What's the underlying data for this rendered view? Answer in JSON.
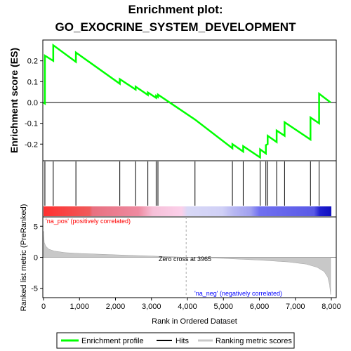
{
  "title_line1": "Enrichment plot:",
  "title_line2": "GO_EXOCRINE_SYSTEM_DEVELOPMENT",
  "colors": {
    "es_line": "#00ff00",
    "hits": "#000000",
    "ranking": "#c8c8c8",
    "pos_text": "#ff0000",
    "neg_text": "#0000ff",
    "zero_cross": "#aaaaaa"
  },
  "chart_data": [
    {
      "type": "line",
      "name": "enrichment_profile",
      "ylabel": "Enrichment score (ES)",
      "xlim": [
        0,
        8100
      ],
      "ylim": [
        -0.28,
        0.3
      ],
      "yticks": [
        -0.2,
        -0.1,
        0.0,
        0.1,
        0.2
      ],
      "ytick_labels": [
        "-0.2",
        "-0.1",
        "0.0",
        "0.1",
        "0.2"
      ],
      "grid": false,
      "x": [
        0,
        38,
        38,
        270,
        270,
        900,
        900,
        2120,
        2120,
        2560,
        2560,
        2900,
        2900,
        3130,
        3130,
        3180,
        3180,
        4210,
        4210,
        5250,
        5250,
        5550,
        5550,
        6020,
        6020,
        6180,
        6180,
        6230,
        6230,
        6480,
        6480,
        6700,
        6700,
        7420,
        7420,
        7660,
        7660,
        7980
      ],
      "y": [
        0.0,
        -0.005,
        0.225,
        0.2,
        0.275,
        0.195,
        0.24,
        0.09,
        0.112,
        0.062,
        0.076,
        0.036,
        0.048,
        0.022,
        0.032,
        0.026,
        0.038,
        -0.082,
        -0.082,
        -0.22,
        -0.2,
        -0.236,
        -0.21,
        -0.264,
        -0.225,
        -0.245,
        -0.205,
        -0.2,
        -0.16,
        -0.19,
        -0.135,
        -0.16,
        -0.095,
        -0.178,
        -0.072,
        -0.1,
        0.042,
        0.0
      ]
    },
    {
      "type": "scatter",
      "name": "hits",
      "x": [
        38,
        270,
        900,
        2120,
        2560,
        2900,
        3130,
        3180,
        4210,
        5250,
        5550,
        6020,
        6180,
        6230,
        6480,
        6700,
        7420,
        7660
      ]
    },
    {
      "type": "area",
      "name": "ranked_list_metric",
      "ylabel": "Ranked list metric (PreRanked)",
      "xlabel": "Rank in Ordered Dataset",
      "xlim": [
        0,
        8100
      ],
      "ylim": [
        -6.5,
        6.5
      ],
      "yticks": [
        -5,
        0,
        5
      ],
      "ytick_labels": [
        "-5",
        "0",
        "5"
      ],
      "xticks": [
        0,
        1000,
        2000,
        3000,
        4000,
        5000,
        6000,
        7000,
        8000
      ],
      "xtick_labels": [
        "0",
        "1,000",
        "2,000",
        "3,000",
        "4,000",
        "5,000",
        "6,000",
        "7,000",
        "8,000"
      ],
      "x": [
        0,
        20,
        60,
        150,
        300,
        600,
        1000,
        2000,
        3000,
        3965,
        5000,
        6000,
        6800,
        7300,
        7600,
        7800,
        7900,
        7950,
        7980
      ],
      "y": [
        4.2,
        2.4,
        1.8,
        1.3,
        1.0,
        0.75,
        0.62,
        0.4,
        0.2,
        0.0,
        -0.18,
        -0.45,
        -0.75,
        -1.1,
        -1.6,
        -2.3,
        -3.2,
        -4.4,
        -6.0
      ],
      "zero_cross_label": "Zero cross at 3965",
      "zero_cross_x": 3965,
      "pos_label": "'na_pos' (positively correlated)",
      "neg_label": "'na_neg' (negatively correlated)"
    }
  ],
  "legend": {
    "placement": "bottom",
    "items": [
      {
        "label": "Enrichment profile"
      },
      {
        "label": "Hits"
      },
      {
        "label": "Ranking metric scores"
      }
    ]
  }
}
